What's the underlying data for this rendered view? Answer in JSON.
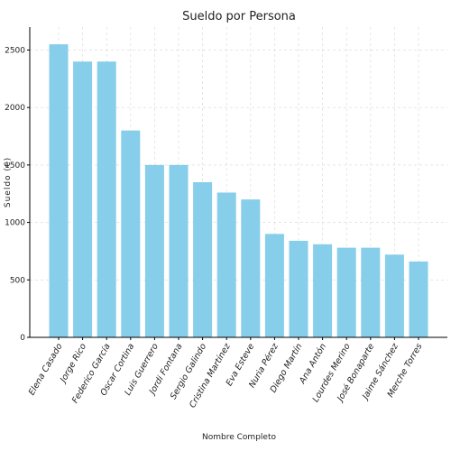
{
  "chart_data": {
    "type": "bar",
    "title": "Sueldo por Persona",
    "xlabel": "Nombre Completo",
    "ylabel": "Sueldo (€)",
    "ylim": [
      0,
      2700
    ],
    "yticks": [
      0,
      500,
      1000,
      1500,
      2000,
      2500
    ],
    "grid": true,
    "bar_color": "#87ceeb",
    "categories": [
      "Elena Casado",
      "Jorge Rico",
      "Federico García",
      "Oscar Cortina",
      "Luis Guerrero",
      "Jordi Fontana",
      "Sergio Galindo",
      "Cristina Martínez",
      "Eva Esteve",
      "Nuria Pérez",
      "Diego Martín",
      "Ana Antón",
      "Lourdes Merino",
      "José Bonaparte",
      "Jaime Sánchez",
      "Merche Torres"
    ],
    "values": [
      2550,
      2400,
      2400,
      1800,
      1500,
      1500,
      1350,
      1260,
      1200,
      900,
      840,
      810,
      780,
      780,
      720,
      660
    ]
  }
}
